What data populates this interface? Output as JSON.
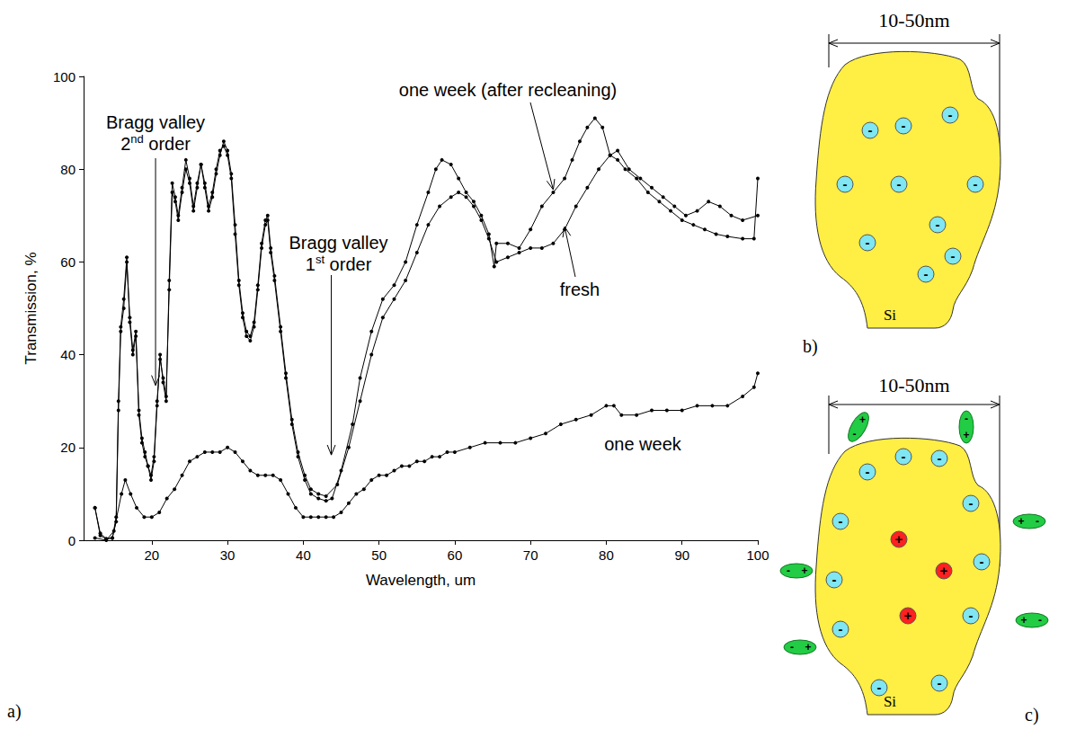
{
  "chart_data": {
    "type": "line",
    "x_label": "Wavelength, um",
    "y_label": "Transmission, %",
    "xlim": [
      11,
      100
    ],
    "xticks": [
      20,
      30,
      40,
      50,
      60,
      70,
      80,
      90,
      100
    ],
    "ylim": [
      0,
      100
    ],
    "yticks": [
      0,
      20,
      40,
      60,
      80,
      100
    ],
    "grid": false,
    "marker": "circle",
    "line_style": "solid",
    "series": [
      {
        "name": "fresh",
        "color": "#000000",
        "x": [
          12.5,
          13.2,
          14,
          14.8,
          15.3,
          15.6,
          15.9,
          16.3,
          16.7,
          17.1,
          17.5,
          17.9,
          18.3,
          18.7,
          19.1,
          19.5,
          19.9,
          20.3,
          20.7,
          21.1,
          21.5,
          21.9,
          22.3,
          22.7,
          23.1,
          23.5,
          24,
          24.5,
          25,
          25.5,
          26,
          26.5,
          27,
          27.5,
          28,
          28.5,
          29,
          29.5,
          30,
          30.5,
          31,
          31.5,
          32,
          32.5,
          33,
          33.5,
          34,
          34.5,
          35,
          35.3,
          35.7,
          36.2,
          37,
          37.7,
          38.5,
          39.3,
          40.2,
          41,
          42,
          43,
          44.5,
          46,
          47.5,
          49,
          50.5,
          52,
          53.5,
          55,
          56.5,
          58,
          59.5,
          60.5,
          61.5,
          62.5,
          63.5,
          64.5,
          65.5,
          67,
          68.5,
          70,
          71.5,
          73,
          74.5,
          76,
          77.5,
          79,
          80.5,
          81.5,
          83,
          84.5,
          86,
          87.5,
          89,
          90.5,
          92,
          93.5,
          95,
          96.5,
          98,
          100
        ],
        "values": [
          7,
          1.5,
          0.3,
          0.5,
          4,
          28,
          45,
          50,
          60,
          48,
          41,
          45,
          28,
          22,
          19,
          16,
          14,
          18,
          30,
          39,
          35,
          31,
          54,
          75,
          73,
          69,
          75,
          80,
          77,
          71,
          76,
          81,
          76,
          71,
          74,
          79,
          83,
          86,
          84,
          79,
          68,
          56,
          49,
          45,
          44,
          47,
          55,
          64,
          69,
          70,
          63,
          57,
          46,
          36,
          26,
          19,
          14,
          11,
          10,
          9.5,
          12,
          20,
          30,
          40,
          48,
          52,
          56,
          62,
          68,
          72,
          74,
          75,
          74,
          72,
          69,
          65,
          60,
          61,
          62,
          63,
          63,
          64,
          67,
          72,
          76,
          80,
          83,
          84,
          80,
          78,
          76,
          74,
          72,
          70,
          71,
          73,
          72,
          70,
          69,
          70
        ]
      },
      {
        "name": "one week",
        "color": "#000000",
        "x": [
          12.5,
          14,
          15,
          16,
          16.5,
          17.2,
          18,
          19,
          20,
          21,
          22,
          23,
          24,
          25,
          26,
          27,
          28,
          29,
          30,
          31,
          32,
          33,
          34,
          35,
          36,
          37,
          38,
          39,
          40,
          41,
          42,
          43,
          44,
          45,
          46,
          47,
          48,
          49,
          50,
          51,
          52,
          53,
          54,
          55,
          56,
          57,
          58,
          59,
          60,
          62,
          64,
          66,
          68,
          70,
          72,
          74,
          76,
          78,
          80,
          81,
          82,
          84,
          86,
          88,
          90,
          92,
          94,
          96,
          98,
          99.5,
          100
        ],
        "values": [
          0.5,
          0,
          2,
          10,
          13,
          10,
          7,
          5,
          5,
          6,
          9,
          11,
          14,
          17,
          18,
          19,
          19,
          19,
          20,
          19,
          17,
          15,
          14,
          14,
          14,
          13,
          10,
          7,
          5,
          5,
          5,
          5,
          5,
          6,
          8,
          10,
          11,
          13,
          14,
          14,
          15,
          16,
          16,
          17,
          17,
          18,
          18,
          19,
          19,
          20,
          21,
          21,
          21,
          22,
          23,
          25,
          26,
          27,
          29,
          29,
          27,
          27,
          28,
          28,
          28,
          29,
          29,
          29,
          31,
          33,
          36
        ]
      },
      {
        "name": "one week (after recleaning)",
        "color": "#000000",
        "x": [
          12.5,
          13.2,
          14,
          14.8,
          15.3,
          15.6,
          15.9,
          16.3,
          16.7,
          17.1,
          17.5,
          17.9,
          18.3,
          18.7,
          19.1,
          19.5,
          19.9,
          20.3,
          20.7,
          21.1,
          21.5,
          21.9,
          22.3,
          22.7,
          23.1,
          23.5,
          24,
          24.5,
          25,
          25.5,
          26,
          26.5,
          27,
          27.5,
          28,
          28.5,
          29,
          29.5,
          30,
          30.5,
          31,
          31.5,
          32,
          32.5,
          33,
          33.5,
          34,
          34.5,
          35,
          35.3,
          35.7,
          36.2,
          37,
          37.7,
          38.5,
          39.3,
          40.2,
          41,
          42,
          43,
          43.8,
          45,
          46.5,
          47.5,
          49,
          50.5,
          52,
          53.5,
          55,
          56.5,
          57.5,
          58.3,
          59.5,
          60.5,
          61.5,
          62.5,
          63.5,
          64.5,
          65.2,
          65.5,
          67,
          68.5,
          70,
          71.5,
          73,
          74.5,
          75.5,
          76.5,
          77.5,
          78.5,
          79.5,
          80.5,
          81.5,
          82.5,
          84,
          85.5,
          87,
          88.5,
          90,
          91.5,
          93,
          94.5,
          96,
          98,
          99.5,
          100
        ],
        "values": [
          7,
          1,
          0.3,
          0.5,
          5,
          30,
          46,
          52,
          61,
          47,
          40,
          44,
          27,
          21,
          18,
          16,
          13,
          17,
          29,
          40,
          34,
          30,
          56,
          77,
          74,
          70,
          76,
          82,
          78,
          72,
          77,
          81,
          77,
          72,
          75,
          80,
          84,
          85,
          83,
          78,
          66,
          55,
          48,
          44,
          43,
          46,
          54,
          63,
          68,
          69,
          62,
          56,
          45,
          35,
          25,
          18,
          13,
          10,
          9,
          8.5,
          9,
          15,
          25,
          35,
          45,
          52,
          55,
          60,
          68,
          75,
          80,
          82,
          81,
          78,
          75,
          73,
          70,
          66,
          59,
          64,
          64,
          63,
          67,
          72,
          75,
          78,
          82,
          86,
          89,
          91,
          89,
          83,
          82,
          80,
          78,
          75,
          73,
          71,
          69,
          68,
          67,
          66,
          65.5,
          65,
          65,
          78
        ]
      }
    ],
    "annotations": [
      {
        "text": "Bragg valley 2nd order",
        "x": 20.5,
        "y": 33
      },
      {
        "text": "Bragg valley 1st order",
        "x": 43.7,
        "y": 18
      }
    ]
  },
  "diagrams": [
    {
      "size_label": "10-50nm",
      "material": "Si",
      "surface_charges": [
        "-",
        "-",
        "-",
        "-",
        "-",
        "-",
        "-",
        "-",
        "-",
        "-"
      ]
    },
    {
      "size_label": "10-50nm",
      "material": "Si",
      "surface_charges": [
        "-",
        "-",
        "-",
        "-",
        "-",
        "-",
        "-",
        "-",
        "-",
        "-",
        "-"
      ],
      "inner_charges": [
        "+",
        "+",
        "+"
      ],
      "adsorbed_dipoles": [
        [
          "-",
          "+"
        ],
        [
          "-",
          "+"
        ],
        [
          "-",
          "+"
        ],
        [
          "-",
          "+"
        ],
        [
          "-",
          "+"
        ],
        [
          "-",
          "+"
        ]
      ]
    }
  ],
  "panel_labels": [
    "a)",
    "b)",
    "c)"
  ]
}
